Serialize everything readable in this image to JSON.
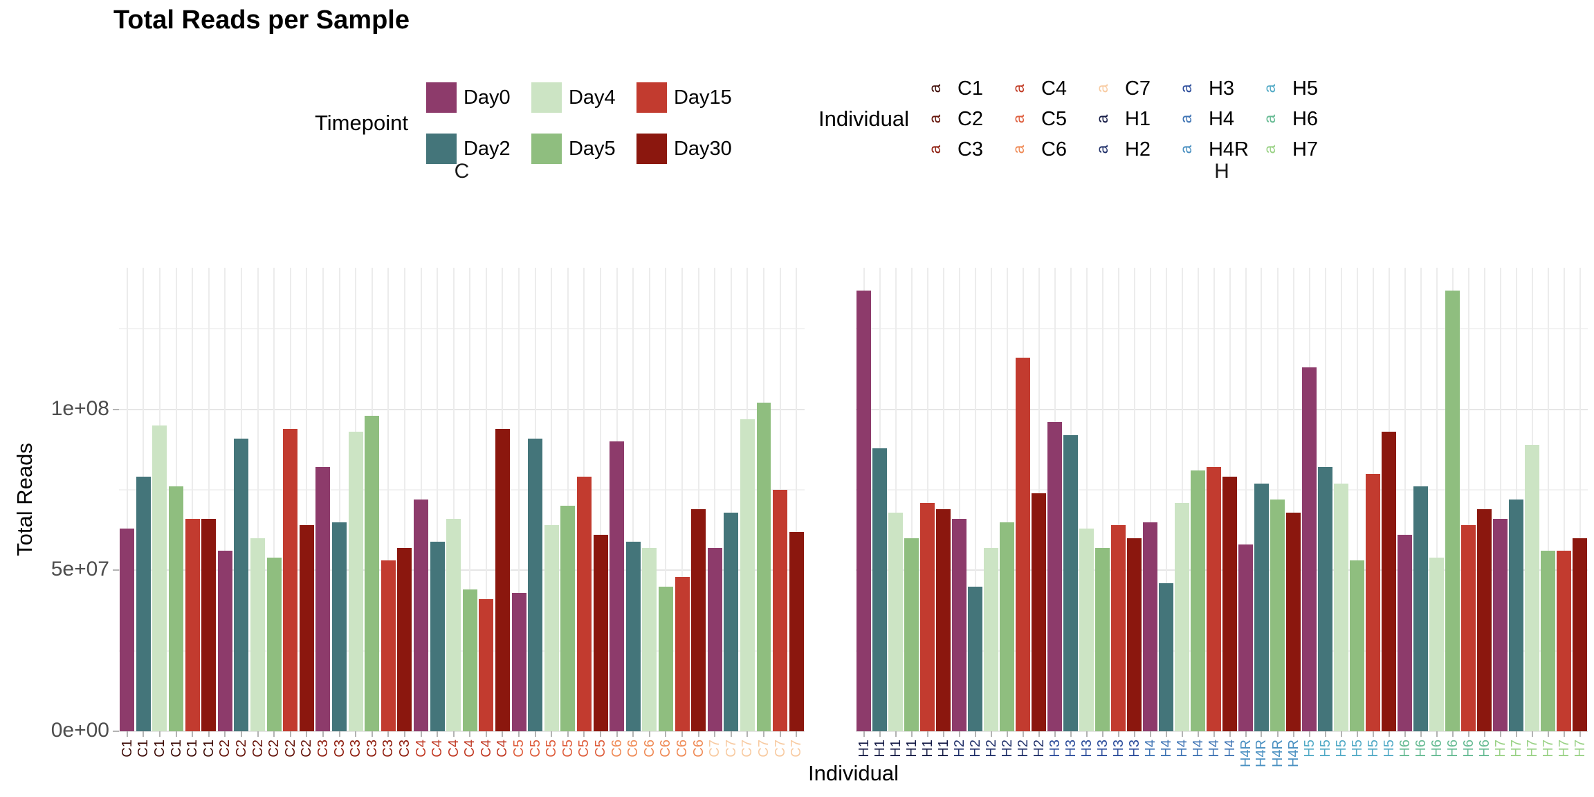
{
  "title": "Total Reads per Sample",
  "colors": {
    "timepoints": {
      "Day0": "#8D3B6B",
      "Day2": "#44757A",
      "Day4": "#CCE4C4",
      "Day5": "#8FBE7F",
      "Day15": "#C23B2F",
      "Day30": "#8B170E"
    },
    "individuals": {
      "C1": "#3D0B06",
      "C2": "#641309",
      "C3": "#8E1D0E",
      "C4": "#C13A24",
      "C5": "#DE5E3D",
      "C6": "#EF8B57",
      "C7": "#F8CBA2",
      "H1": "#161C46",
      "H2": "#203069",
      "H3": "#2C4D9B",
      "H4": "#3F74B4",
      "H4R": "#4A90C1",
      "H5": "#52AAC6",
      "H6": "#65BA92",
      "H7": "#9AD286"
    }
  },
  "legend": {
    "timepoint_title": "Timepoint",
    "timepoint_rows": [
      [
        "Day0",
        "Day4",
        "Day15"
      ],
      [
        "Day2",
        "Day5",
        "Day30"
      ]
    ],
    "individual_title": "Individual",
    "individual_rows": [
      [
        "C1",
        "C4",
        "C7",
        "H3",
        "H5"
      ],
      [
        "C2",
        "C5",
        "H1",
        "H4",
        "H6"
      ],
      [
        "C3",
        "C6",
        "H2",
        "H4R",
        "H7"
      ]
    ],
    "key_glyph": "a"
  },
  "chart_data": {
    "type": "bar",
    "title": "Total Reads per Sample",
    "xlabel": "Individual",
    "ylabel": "Total Reads",
    "ylim": [
      0,
      144000000
    ],
    "grid": true,
    "legend_position": "top",
    "y_ticks": [
      {
        "label": "0e+00",
        "value": 0
      },
      {
        "label": "5e+07",
        "value": 50000000
      },
      {
        "label": "1e+08",
        "value": 100000000
      }
    ],
    "timepoint_order": [
      "Day0",
      "Day2",
      "Day4",
      "Day5",
      "Day15",
      "Day30"
    ],
    "facets": [
      {
        "facet": "C",
        "individuals": [
          {
            "id": "C1",
            "timepoints": [
              "Day0",
              "Day2",
              "Day4",
              "Day5",
              "Day15",
              "Day30"
            ],
            "values": [
              63000000,
              79000000,
              95000000,
              76000000,
              66000000,
              66000000
            ]
          },
          {
            "id": "C2",
            "timepoints": [
              "Day0",
              "Day2",
              "Day4",
              "Day5",
              "Day15",
              "Day30"
            ],
            "values": [
              56000000,
              91000000,
              60000000,
              54000000,
              94000000,
              64000000
            ]
          },
          {
            "id": "C3",
            "timepoints": [
              "Day0",
              "Day2",
              "Day4",
              "Day5",
              "Day15",
              "Day30"
            ],
            "values": [
              82000000,
              65000000,
              93000000,
              98000000,
              53000000,
              57000000
            ]
          },
          {
            "id": "C4",
            "timepoints": [
              "Day0",
              "Day2",
              "Day4",
              "Day5",
              "Day15",
              "Day30"
            ],
            "values": [
              72000000,
              59000000,
              66000000,
              44000000,
              41000000,
              94000000
            ]
          },
          {
            "id": "C5",
            "timepoints": [
              "Day0",
              "Day2",
              "Day4",
              "Day5",
              "Day15",
              "Day30"
            ],
            "values": [
              43000000,
              91000000,
              64000000,
              70000000,
              79000000,
              61000000
            ]
          },
          {
            "id": "C6",
            "timepoints": [
              "Day0",
              "Day2",
              "Day4",
              "Day5",
              "Day15",
              "Day30"
            ],
            "values": [
              90000000,
              59000000,
              57000000,
              45000000,
              48000000,
              69000000
            ]
          },
          {
            "id": "C7",
            "timepoints": [
              "Day0",
              "Day2",
              "Day4",
              "Day5",
              "Day15",
              "Day30"
            ],
            "values": [
              57000000,
              68000000,
              97000000,
              102000000,
              75000000,
              62000000
            ]
          }
        ]
      },
      {
        "facet": "H",
        "individuals": [
          {
            "id": "H1",
            "timepoints": [
              "Day0",
              "Day2",
              "Day4",
              "Day5",
              "Day15",
              "Day30"
            ],
            "values": [
              137000000,
              88000000,
              68000000,
              60000000,
              71000000,
              69000000
            ]
          },
          {
            "id": "H2",
            "timepoints": [
              "Day0",
              "Day2",
              "Day4",
              "Day5",
              "Day15",
              "Day30"
            ],
            "values": [
              66000000,
              45000000,
              57000000,
              65000000,
              116000000,
              74000000
            ]
          },
          {
            "id": "H3",
            "timepoints": [
              "Day0",
              "Day2",
              "Day4",
              "Day5",
              "Day15",
              "Day30"
            ],
            "values": [
              96000000,
              92000000,
              63000000,
              57000000,
              64000000,
              60000000
            ]
          },
          {
            "id": "H4",
            "timepoints": [
              "Day0",
              "Day2",
              "Day4",
              "Day5",
              "Day15",
              "Day30"
            ],
            "values": [
              65000000,
              46000000,
              71000000,
              81000000,
              82000000,
              79000000
            ]
          },
          {
            "id": "H4R",
            "timepoints": [
              "Day0",
              "Day2",
              "Day5",
              "Day30"
            ],
            "values": [
              58000000,
              77000000,
              72000000,
              68000000
            ]
          },
          {
            "id": "H5",
            "timepoints": [
              "Day0",
              "Day2",
              "Day4",
              "Day5",
              "Day15",
              "Day30"
            ],
            "values": [
              113000000,
              82000000,
              77000000,
              53000000,
              80000000,
              93000000
            ]
          },
          {
            "id": "H6",
            "timepoints": [
              "Day0",
              "Day2",
              "Day4",
              "Day5",
              "Day15",
              "Day30"
            ],
            "values": [
              61000000,
              76000000,
              54000000,
              137000000,
              64000000,
              69000000
            ]
          },
          {
            "id": "H7",
            "timepoints": [
              "Day0",
              "Day2",
              "Day4",
              "Day5",
              "Day15",
              "Day30"
            ],
            "values": [
              66000000,
              72000000,
              89000000,
              56000000,
              56000000,
              60000000
            ]
          }
        ]
      }
    ]
  }
}
